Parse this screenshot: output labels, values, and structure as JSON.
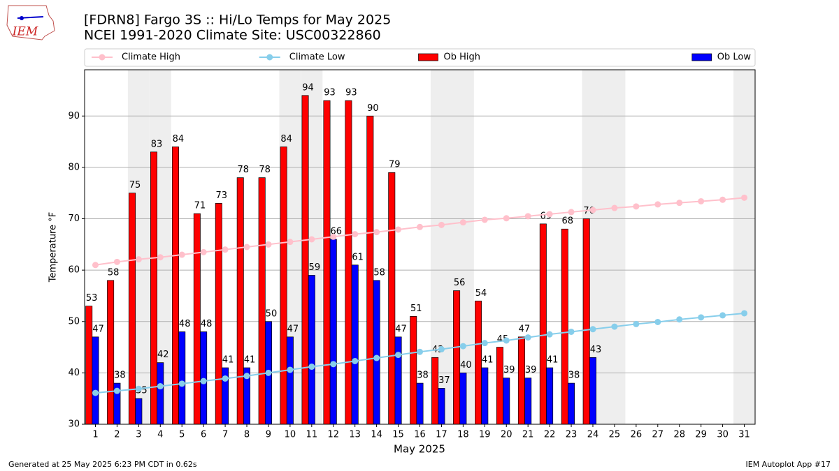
{
  "logo_text": "IEM",
  "footer_left": "Generated at 25 May 2025 6:23 PM CDT in 0.62s",
  "footer_right": "IEM Autoplot App #17",
  "chart_data": {
    "type": "bar",
    "title": "[FDRN8] Fargo 3S :: Hi/Lo Temps for May 2025",
    "subtitle": "NCEI 1991-2020 Climate Site: USC00322860",
    "x_label": "May 2025",
    "y_label": "Temperature °F",
    "x": [
      1,
      2,
      3,
      4,
      5,
      6,
      7,
      8,
      9,
      10,
      11,
      12,
      13,
      14,
      15,
      16,
      17,
      18,
      19,
      20,
      21,
      22,
      23,
      24,
      25,
      26,
      27,
      28,
      29,
      30,
      31
    ],
    "xlim": [
      0.5,
      31.5
    ],
    "xticks": [
      1,
      2,
      3,
      4,
      5,
      6,
      7,
      8,
      9,
      10,
      11,
      12,
      13,
      14,
      15,
      16,
      17,
      18,
      19,
      20,
      21,
      22,
      23,
      24,
      25,
      26,
      27,
      28,
      29,
      30,
      31
    ],
    "ylim": [
      30,
      99
    ],
    "yticks": [
      30,
      40,
      50,
      60,
      70,
      80,
      90
    ],
    "grid": true,
    "shaded_days": [
      3,
      4,
      10,
      11,
      17,
      18,
      24,
      25,
      31
    ],
    "legend": "top",
    "series": [
      {
        "name": "Climate High",
        "type": "line",
        "color": "#ffc0cb",
        "values": [
          61.0,
          61.6,
          62.1,
          62.5,
          63.0,
          63.5,
          64.0,
          64.5,
          65.0,
          65.5,
          66.0,
          66.5,
          67.0,
          67.4,
          67.9,
          68.4,
          68.8,
          69.3,
          69.8,
          70.1,
          70.5,
          70.9,
          71.3,
          71.7,
          72.1,
          72.4,
          72.8,
          73.1,
          73.4,
          73.7,
          74.1
        ]
      },
      {
        "name": "Climate Low",
        "type": "line",
        "color": "#87ceeb",
        "values": [
          36.1,
          36.5,
          36.9,
          37.4,
          37.9,
          38.4,
          38.9,
          39.4,
          40.0,
          40.6,
          41.2,
          41.7,
          42.3,
          42.9,
          43.5,
          44.1,
          44.6,
          45.2,
          45.8,
          46.3,
          46.9,
          47.5,
          48.0,
          48.5,
          49.0,
          49.5,
          49.9,
          50.4,
          50.8,
          51.2,
          51.6
        ]
      },
      {
        "name": "Ob High",
        "type": "bar",
        "color": "#ff0000",
        "values": [
          53,
          58,
          75,
          83,
          84,
          71,
          73,
          78,
          78,
          84,
          94,
          93,
          93,
          90,
          79,
          51,
          43,
          56,
          54,
          45,
          47,
          69,
          68,
          70,
          null,
          null,
          null,
          null,
          null,
          null,
          null
        ]
      },
      {
        "name": "Ob Low",
        "type": "bar",
        "color": "#0000ff",
        "values": [
          47,
          38,
          35,
          42,
          48,
          48,
          41,
          41,
          50,
          47,
          59,
          66,
          61,
          58,
          47,
          38,
          37,
          40,
          41,
          39,
          39,
          41,
          38,
          43,
          null,
          null,
          null,
          null,
          null,
          null,
          null
        ]
      }
    ]
  }
}
